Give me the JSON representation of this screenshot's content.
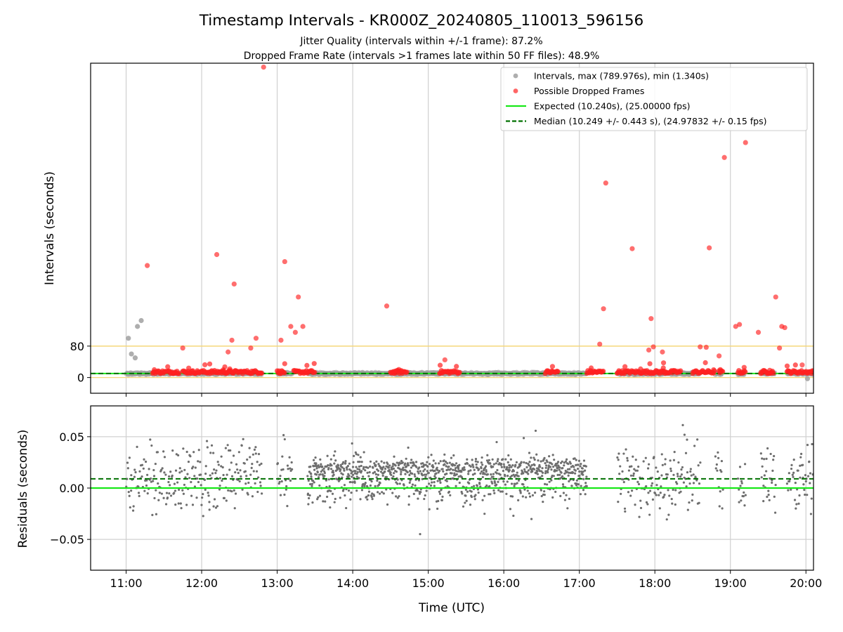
{
  "chart_data": {
    "type": "scatter",
    "title": "Timestamp Intervals - KR000Z_20240805_110013_596156",
    "subtitle_lines": [
      "Jitter Quality (intervals within +/-1 frame): 87.2%",
      "Dropped Frame Rate (intervals >1 frames late within 50 FF files): 48.9%"
    ],
    "xlabel": "Time (UTC)",
    "x_ticks": [
      "11:00",
      "12:00",
      "13:00",
      "14:00",
      "15:00",
      "16:00",
      "17:00",
      "18:00",
      "19:00",
      "20:00"
    ],
    "x_range_hours": [
      10.53,
      20.1
    ],
    "grid": true,
    "top_panel": {
      "ylabel": "Intervals (seconds)",
      "y_ticks": [
        "0",
        "80"
      ],
      "ylim": [
        -40,
        800
      ],
      "threshold_line_y": 80,
      "threshold_color": "#f5d77a",
      "expected": 10.24,
      "median": 10.249,
      "legend_position": "top-right",
      "legend": [
        {
          "label": "Intervals, max (789.976s), min (1.340s)",
          "marker": "dot",
          "color": "#a0a0a0"
        },
        {
          "label": "Possible Dropped Frames",
          "marker": "dot",
          "color": "#ff4a4a"
        },
        {
          "label": "Expected (10.240s), (25.00000 fps)",
          "marker": "line",
          "color": "#18e818"
        },
        {
          "label": "Median (10.249 +/- 0.443 s), (24.97832 +/- 0.15 fps)",
          "marker": "dashed",
          "color": "#007000"
        }
      ],
      "gray_outliers": [
        {
          "x": 11.03,
          "y": 100
        },
        {
          "x": 11.07,
          "y": 60
        },
        {
          "x": 11.12,
          "y": 50
        },
        {
          "x": 11.15,
          "y": 130
        },
        {
          "x": 11.2,
          "y": 145
        },
        {
          "x": 20.02,
          "y": -3
        }
      ],
      "dropped_outliers": [
        {
          "x": 11.28,
          "y": 285
        },
        {
          "x": 11.75,
          "y": 75
        },
        {
          "x": 12.2,
          "y": 313
        },
        {
          "x": 12.35,
          "y": 65
        },
        {
          "x": 12.4,
          "y": 95
        },
        {
          "x": 12.43,
          "y": 238
        },
        {
          "x": 12.65,
          "y": 75
        },
        {
          "x": 12.72,
          "y": 100
        },
        {
          "x": 12.82,
          "y": 790
        },
        {
          "x": 13.05,
          "y": 95
        },
        {
          "x": 13.1,
          "y": 295
        },
        {
          "x": 13.18,
          "y": 130
        },
        {
          "x": 13.24,
          "y": 115
        },
        {
          "x": 13.28,
          "y": 205
        },
        {
          "x": 13.34,
          "y": 130
        },
        {
          "x": 14.45,
          "y": 182
        },
        {
          "x": 15.22,
          "y": 45
        },
        {
          "x": 17.27,
          "y": 85
        },
        {
          "x": 17.32,
          "y": 175
        },
        {
          "x": 17.35,
          "y": 495
        },
        {
          "x": 17.7,
          "y": 328
        },
        {
          "x": 17.95,
          "y": 150
        },
        {
          "x": 17.92,
          "y": 70
        },
        {
          "x": 17.98,
          "y": 78
        },
        {
          "x": 18.1,
          "y": 65
        },
        {
          "x": 18.6,
          "y": 78
        },
        {
          "x": 18.68,
          "y": 77
        },
        {
          "x": 18.72,
          "y": 330
        },
        {
          "x": 18.85,
          "y": 55
        },
        {
          "x": 18.92,
          "y": 560
        },
        {
          "x": 19.07,
          "y": 130
        },
        {
          "x": 19.12,
          "y": 135
        },
        {
          "x": 19.2,
          "y": 598
        },
        {
          "x": 19.37,
          "y": 115
        },
        {
          "x": 19.6,
          "y": 205
        },
        {
          "x": 19.65,
          "y": 75
        },
        {
          "x": 19.68,
          "y": 130
        },
        {
          "x": 19.72,
          "y": 127
        },
        {
          "x": 19.95,
          "y": 32
        }
      ],
      "dropped_segments_hours": [
        [
          11.35,
          11.7
        ],
        [
          11.75,
          12.8
        ],
        [
          13.0,
          13.1
        ],
        [
          13.22,
          13.5
        ],
        [
          14.5,
          14.72
        ],
        [
          15.15,
          15.42
        ],
        [
          16.55,
          16.72
        ],
        [
          17.1,
          17.32
        ],
        [
          17.5,
          18.35
        ],
        [
          18.5,
          18.8
        ],
        [
          18.85,
          18.9
        ],
        [
          19.1,
          19.2
        ],
        [
          19.4,
          19.58
        ],
        [
          19.75,
          20.1
        ]
      ]
    },
    "bottom_panel": {
      "ylabel": "Residuals (seconds)",
      "y_ticks": [
        "0.05",
        "0.00",
        "−0.05"
      ],
      "ylim": [
        -0.08,
        0.08
      ],
      "expected_residual": 0.0,
      "median_residual": 0.009,
      "point_color": "#6e6e6e",
      "data_segments_hours": [
        [
          11.0,
          12.8
        ],
        [
          13.0,
          13.2
        ],
        [
          13.4,
          17.1
        ],
        [
          17.5,
          18.6
        ],
        [
          18.8,
          18.9
        ],
        [
          19.1,
          19.2
        ],
        [
          19.4,
          19.6
        ],
        [
          19.75,
          20.1
        ]
      ]
    }
  }
}
